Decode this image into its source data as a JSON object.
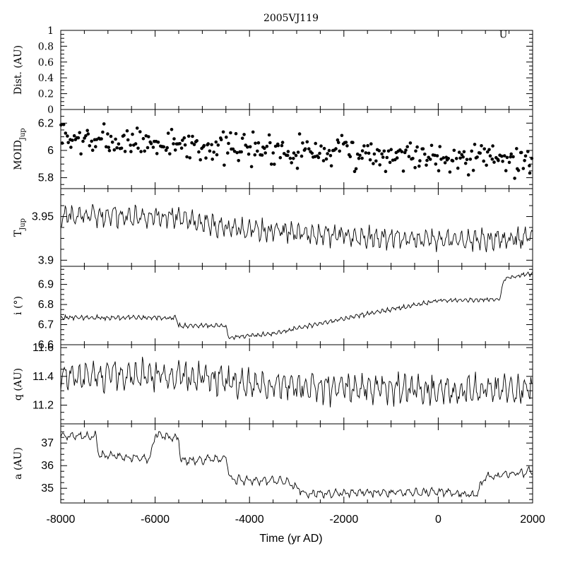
{
  "title": "2005VJ119",
  "xlabel": "Time (yr AD)",
  "x_range": [
    -8000,
    2000
  ],
  "x_ticks": [
    "-8000",
    "-6000",
    "-4000",
    "-2000",
    "0",
    "2000"
  ],
  "line_color": "#000000",
  "chart_data": [
    {
      "type": "scatter",
      "panel": "dist",
      "ylabel": "Dist. (AU)",
      "ylim": [
        0,
        1
      ],
      "ytick_labels": [
        "0",
        "0.2",
        "0.4",
        "0.6",
        "0.8",
        "1"
      ],
      "marker_label": "U",
      "x": [
        1380
      ],
      "y": [
        0.96
      ]
    },
    {
      "type": "scatter",
      "panel": "moid",
      "ylabel": "MOID",
      "ylabel_sub": "Jup",
      "ylim": [
        5.72,
        6.3
      ],
      "ytick_labels": [
        "5.8",
        "6",
        "6.2"
      ],
      "trend": [
        [
          -8000,
          6.08
        ],
        [
          2000,
          5.93
        ]
      ],
      "spread": 0.12,
      "n_points": 330
    },
    {
      "type": "line",
      "panel": "tjup",
      "ylabel": "T",
      "ylabel_sub": "Jup",
      "ylim": [
        3.893,
        3.982
      ],
      "ytick_labels": [
        "3.9",
        "3.95"
      ],
      "trend": [
        [
          -8000,
          3.951
        ],
        [
          -5500,
          3.95
        ],
        [
          -4500,
          3.937
        ],
        [
          -2000,
          3.928
        ],
        [
          500,
          3.922
        ],
        [
          2000,
          3.925
        ]
      ],
      "osc_amp": 0.013,
      "osc_period": 150
    },
    {
      "type": "line",
      "panel": "incl",
      "ylabel": "i (°)",
      "ylim": [
        6.6,
        6.99
      ],
      "ytick_labels": [
        "6.6",
        "6.7",
        "6.8",
        "6.9"
      ],
      "trend": [
        [
          -8000,
          6.735
        ],
        [
          -5550,
          6.735
        ],
        [
          -5500,
          6.695
        ],
        [
          -4500,
          6.695
        ],
        [
          -4450,
          6.635
        ],
        [
          -3500,
          6.655
        ],
        [
          -2000,
          6.73
        ],
        [
          0,
          6.82
        ],
        [
          1300,
          6.825
        ],
        [
          1400,
          6.93
        ],
        [
          2000,
          6.955
        ]
      ],
      "osc_amp": 0.012,
      "osc_period": 110
    },
    {
      "type": "line",
      "panel": "q",
      "ylabel": "q (AU)",
      "ylim": [
        11.07,
        11.62
      ],
      "ytick_labels": [
        "11.2",
        "11.4",
        "11.6"
      ],
      "trend": [
        [
          -8000,
          11.41
        ],
        [
          -5000,
          11.4
        ],
        [
          -4000,
          11.34
        ],
        [
          0,
          11.3
        ],
        [
          2000,
          11.31
        ]
      ],
      "osc_amp": 0.11,
      "osc_period": 150
    },
    {
      "type": "line",
      "panel": "a",
      "ylabel": "a (AU)",
      "ylim": [
        34.35,
        37.85
      ],
      "ytick_labels": [
        "35",
        "36",
        "37"
      ],
      "trend": [
        [
          -8000,
          37.3
        ],
        [
          -7250,
          37.3
        ],
        [
          -7200,
          36.5
        ],
        [
          -6100,
          36.3
        ],
        [
          -6000,
          37.4
        ],
        [
          -5500,
          37.2
        ],
        [
          -5450,
          36.2
        ],
        [
          -4500,
          36.35
        ],
        [
          -4400,
          35.4
        ],
        [
          -3200,
          35.3
        ],
        [
          -2800,
          34.75
        ],
        [
          0,
          34.85
        ],
        [
          800,
          34.7
        ],
        [
          1000,
          35.5
        ],
        [
          2000,
          35.75
        ]
      ],
      "osc_amp": 0.2,
      "osc_period": 170
    }
  ]
}
